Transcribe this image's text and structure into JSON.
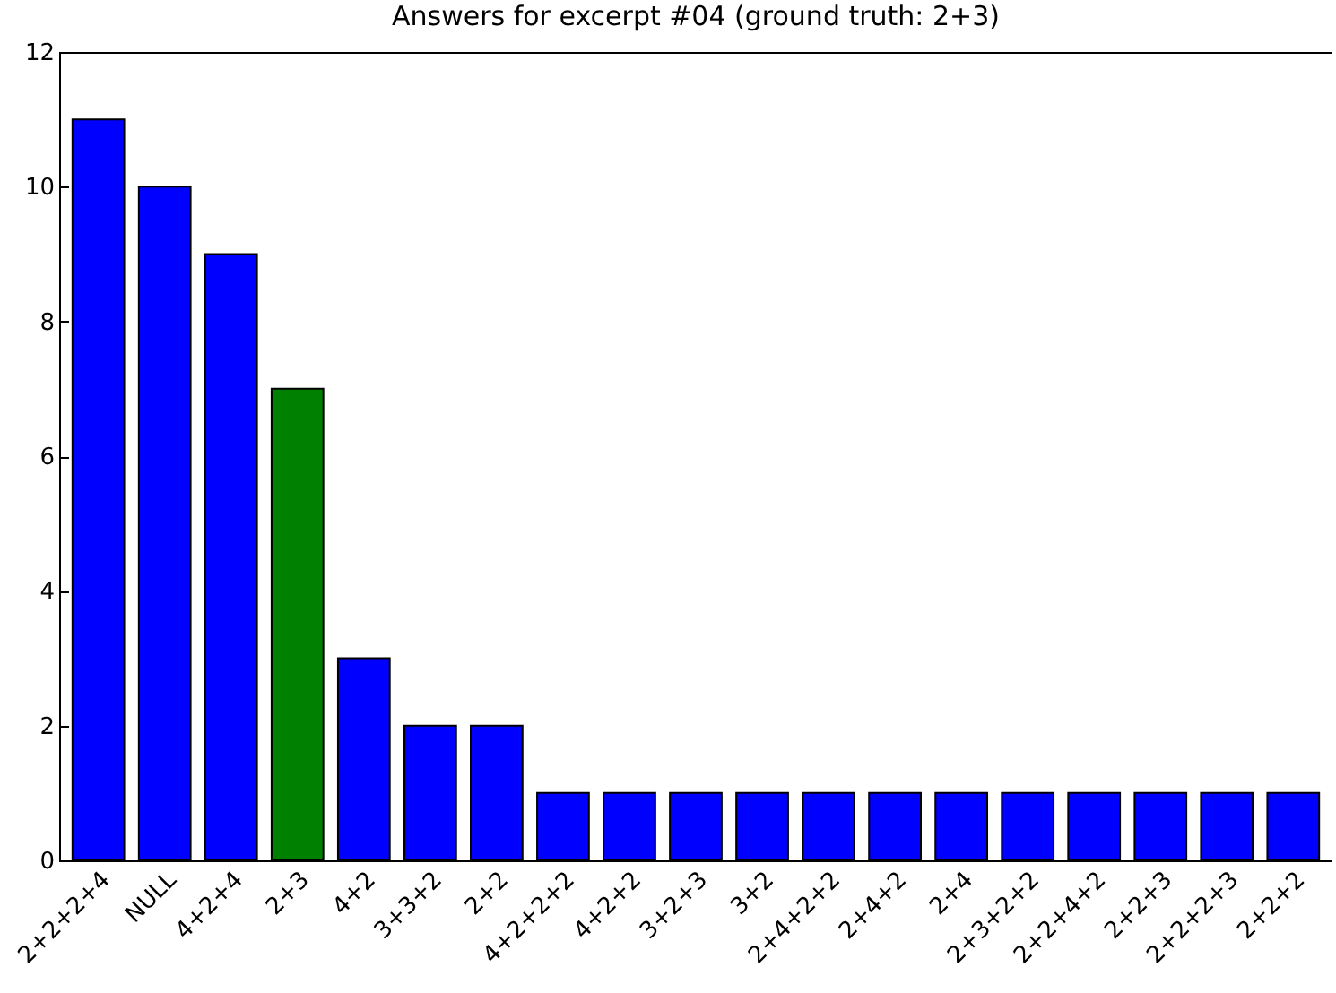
{
  "chart_data": {
    "type": "bar",
    "title": "Answers for excerpt #04 (ground truth: 2+3)",
    "categories": [
      "2+2+2+4",
      "NULL",
      "4+2+4",
      "2+3",
      "4+2",
      "3+3+2",
      "2+2",
      "4+2+2+2",
      "4+2+2",
      "3+2+3",
      "3+2",
      "2+4+2+2",
      "2+4+2",
      "2+4",
      "2+3+2+2",
      "2+2+4+2",
      "2+2+3",
      "2+2+2+3",
      "2+2+2"
    ],
    "values": [
      11,
      10,
      9,
      7,
      3,
      2,
      2,
      1,
      1,
      1,
      1,
      1,
      1,
      1,
      1,
      1,
      1,
      1,
      1
    ],
    "colors": [
      "#0000ff",
      "#0000ff",
      "#0000ff",
      "#008000",
      "#0000ff",
      "#0000ff",
      "#0000ff",
      "#0000ff",
      "#0000ff",
      "#0000ff",
      "#0000ff",
      "#0000ff",
      "#0000ff",
      "#0000ff",
      "#0000ff",
      "#0000ff",
      "#0000ff",
      "#0000ff",
      "#0000ff"
    ],
    "ylim": [
      0,
      12
    ],
    "yticks": [
      0,
      2,
      4,
      6,
      8,
      10,
      12
    ],
    "grid": false
  }
}
